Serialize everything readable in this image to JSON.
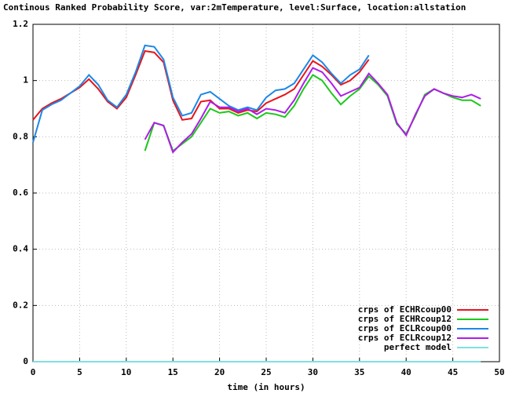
{
  "chart_data": {
    "type": "line",
    "title": "Continous Ranked Probability Score, var:2mTemperature, level:Surface, location:allstation",
    "xlabel": "time (in hours)",
    "x": [
      0,
      1,
      2,
      3,
      4,
      5,
      6,
      7,
      8,
      9,
      10,
      11,
      12,
      13,
      14,
      15,
      16,
      17,
      18,
      19,
      20,
      21,
      22,
      23,
      24,
      25,
      26,
      27,
      28,
      29,
      30,
      31,
      32,
      33,
      34,
      35,
      36,
      37,
      38,
      39,
      40,
      41,
      42,
      43,
      44,
      45,
      46,
      47,
      48
    ],
    "xlim": [
      0,
      50
    ],
    "xticks": [
      0,
      5,
      10,
      15,
      20,
      25,
      30,
      35,
      40,
      45,
      50
    ],
    "ylim": [
      0,
      1.2
    ],
    "yticks": [
      0,
      0.2,
      0.4,
      0.6,
      0.8,
      1,
      1.2
    ],
    "grid": true,
    "legend": "lower right",
    "series": [
      {
        "name": "crps of ECHRcoup00",
        "color": "#e8141c",
        "values": [
          0.86,
          0.9,
          0.92,
          0.935,
          0.955,
          0.975,
          1.005,
          0.97,
          0.925,
          0.9,
          0.94,
          1.02,
          1.105,
          1.1,
          1.065,
          0.93,
          0.86,
          0.865,
          0.925,
          0.93,
          0.9,
          0.9,
          0.885,
          0.895,
          0.89,
          0.92,
          0.935,
          0.95,
          0.97,
          1.02,
          1.07,
          1.05,
          1.02,
          0.985,
          1.0,
          1.03,
          1.075,
          null,
          null,
          null,
          null,
          null,
          null,
          null,
          null,
          null,
          null,
          null,
          null
        ]
      },
      {
        "name": "crps of ECHRcoup12",
        "color": "#1cc81c",
        "values": [
          null,
          null,
          null,
          null,
          null,
          null,
          null,
          null,
          null,
          null,
          null,
          null,
          0.75,
          0.85,
          0.84,
          0.75,
          0.775,
          0.8,
          0.85,
          0.9,
          0.885,
          0.89,
          0.875,
          0.885,
          0.865,
          0.885,
          0.88,
          0.87,
          0.91,
          0.97,
          1.02,
          1.0,
          0.955,
          0.915,
          0.945,
          0.97,
          1.015,
          0.985,
          0.945,
          0.845,
          0.81,
          0.875,
          0.95,
          0.97,
          0.955,
          0.94,
          0.93,
          0.93,
          0.91
        ]
      },
      {
        "name": "crps of ECLRcoup00",
        "color": "#1c88e8",
        "values": [
          0.78,
          0.895,
          0.915,
          0.93,
          0.955,
          0.98,
          1.02,
          0.985,
          0.93,
          0.905,
          0.95,
          1.03,
          1.125,
          1.12,
          1.075,
          0.94,
          0.875,
          0.885,
          0.95,
          0.96,
          0.935,
          0.91,
          0.895,
          0.905,
          0.895,
          0.94,
          0.965,
          0.97,
          0.99,
          1.04,
          1.09,
          1.065,
          1.025,
          0.99,
          1.02,
          1.04,
          1.09,
          null,
          null,
          null,
          null,
          null,
          null,
          null,
          null,
          null,
          null,
          null,
          null
        ]
      },
      {
        "name": "crps of ECLRcoup12",
        "color": "#b01ce8",
        "values": [
          null,
          null,
          null,
          null,
          null,
          null,
          null,
          null,
          null,
          null,
          null,
          null,
          0.79,
          0.85,
          0.84,
          0.745,
          0.78,
          0.81,
          0.865,
          0.925,
          0.905,
          0.905,
          0.89,
          0.9,
          0.88,
          0.9,
          0.895,
          0.885,
          0.93,
          0.99,
          1.045,
          1.03,
          0.99,
          0.945,
          0.96,
          0.975,
          1.025,
          0.99,
          0.95,
          0.85,
          0.805,
          0.88,
          0.945,
          0.97,
          0.955,
          0.945,
          0.94,
          0.95,
          0.935
        ]
      },
      {
        "name": "perfect model",
        "color": "#80e0e0",
        "values": [
          0,
          0,
          0,
          0,
          0,
          0,
          0,
          0,
          0,
          0,
          0,
          0,
          0,
          0,
          0,
          0,
          0,
          0,
          0,
          0,
          0,
          0,
          0,
          0,
          0,
          0,
          0,
          0,
          0,
          0,
          0,
          0,
          0,
          0,
          0,
          0,
          0,
          0,
          0,
          0,
          0,
          0,
          0,
          0,
          0,
          0,
          0,
          0,
          0
        ]
      }
    ]
  }
}
